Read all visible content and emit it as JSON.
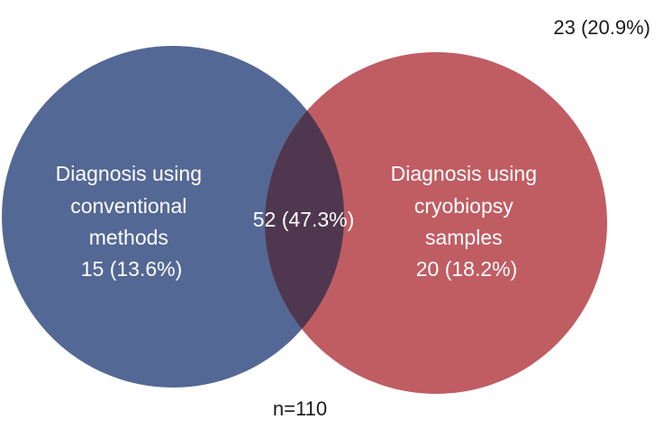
{
  "outside": {
    "label": "23 (20.9%)"
  },
  "total": {
    "label": "n=110"
  },
  "left_set": {
    "lines": [
      "Diagnosis using",
      "conventional",
      "methods",
      "15 (13.6%)"
    ],
    "color": "#546895"
  },
  "right_set": {
    "lines": [
      "Diagnosis using",
      "cryobiopsy",
      "samples",
      "20 (18.2%)"
    ],
    "color": "#bf5d63"
  },
  "overlap": {
    "label": "52 (47.3%)",
    "color": "#4f374f"
  },
  "chart_data": {
    "type": "venn",
    "total": 110,
    "sets": [
      {
        "name": "Diagnosis using conventional methods",
        "only": 15,
        "only_pct": 13.6
      },
      {
        "name": "Diagnosis using cryobiopsy samples",
        "only": 20,
        "only_pct": 18.2
      }
    ],
    "intersection": {
      "value": 52,
      "pct": 47.3
    },
    "neither": {
      "value": 23,
      "pct": 20.9
    }
  }
}
